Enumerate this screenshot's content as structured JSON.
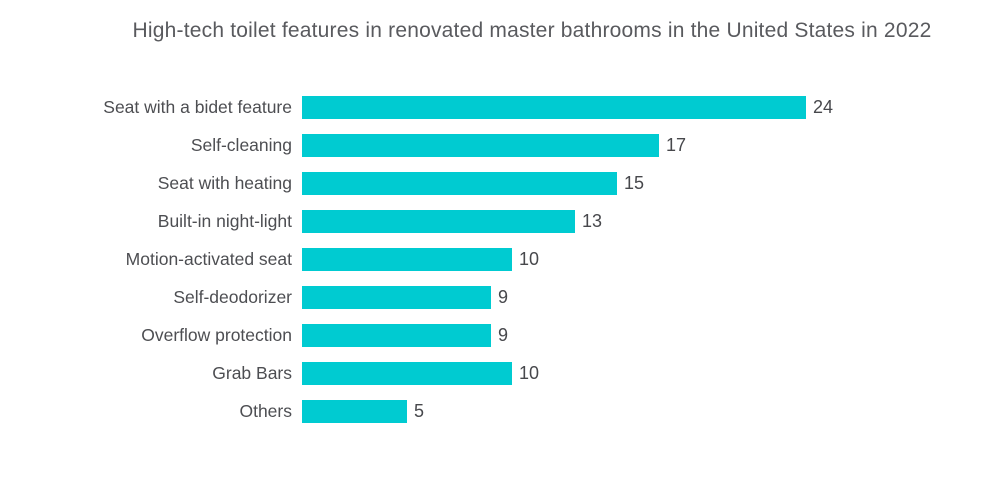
{
  "chart_data": {
    "type": "bar",
    "orientation": "horizontal",
    "title": "High-tech toilet features in renovated master bathrooms in the United States in 2022",
    "categories": [
      "Seat with a bidet feature",
      "Self-cleaning",
      "Seat with heating",
      "Built-in night-light",
      "Motion-activated seat",
      "Self-deodorizer",
      "Overflow protection",
      "Grab Bars",
      "Others"
    ],
    "values": [
      24,
      17,
      15,
      13,
      10,
      9,
      9,
      10,
      5
    ],
    "value_labels": [
      "24",
      "17",
      "15",
      "13",
      "10",
      "9",
      "9",
      "10",
      "5"
    ],
    "xlabel": "",
    "ylabel": "",
    "xlim": [
      0,
      24
    ],
    "grid": false,
    "axes_visible": false,
    "value_label_position": "end-of-bar",
    "bar_color": "#00CBD1",
    "title_color": "#595a5e",
    "label_color": "#4d4e52",
    "background_color": "#ffffff"
  }
}
